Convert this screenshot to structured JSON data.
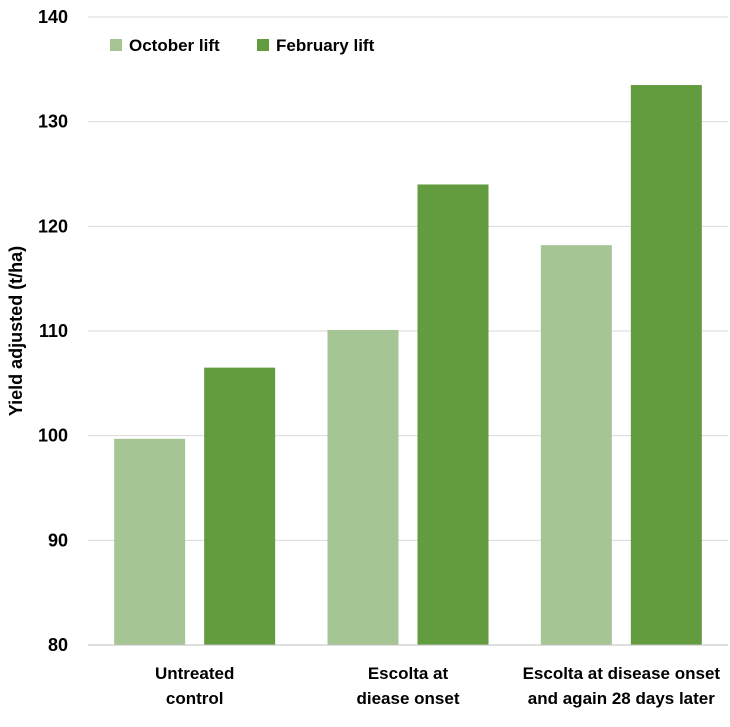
{
  "chart_data": {
    "type": "bar",
    "categories": [
      [
        "Untreated",
        "control"
      ],
      [
        "Escolta at",
        "diease onset"
      ],
      [
        "Escolta at disease onset",
        "and again 28 days later"
      ]
    ],
    "series": [
      {
        "name": "October lift",
        "color": "#a5c594",
        "values": [
          99.7,
          110.1,
          118.2
        ]
      },
      {
        "name": "February lift",
        "color": "#639b3f",
        "values": [
          106.5,
          124.0,
          133.5
        ]
      }
    ],
    "ylabel": "Yield adjusted (t/ha)",
    "ylim": [
      80,
      140
    ],
    "yticks": [
      80,
      90,
      100,
      110,
      120,
      130,
      140
    ],
    "grid": true,
    "legend": "top-left"
  }
}
